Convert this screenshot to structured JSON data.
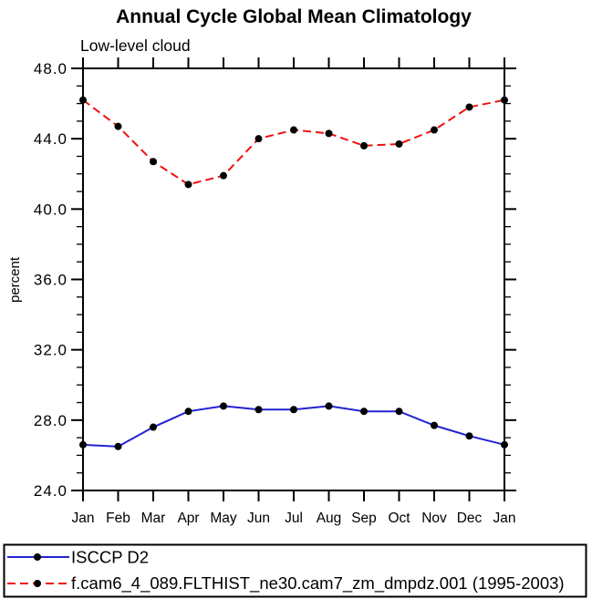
{
  "chart_data": {
    "type": "line",
    "title": "Annual Cycle Global Mean Climatology",
    "subtitle": "Low-level cloud",
    "xlabel": "",
    "ylabel": "percent",
    "categories": [
      "Jan",
      "Feb",
      "Mar",
      "Apr",
      "May",
      "Jun",
      "Jul",
      "Aug",
      "Sep",
      "Oct",
      "Nov",
      "Dec",
      "Jan"
    ],
    "ylim": [
      24.0,
      48.0
    ],
    "ytick_major_step": 4.0,
    "ytick_minor_step": 1.0,
    "ytick_labels": [
      "24.0",
      "28.0",
      "32.0",
      "36.0",
      "40.0",
      "44.0",
      "48.0"
    ],
    "grid": false,
    "legend_position": "bottom-left-box",
    "axis_color": "#000000",
    "marker_color": "#000000",
    "series": [
      {
        "name": "ISCCP D2",
        "color": "#2222d2",
        "line_style": "solid",
        "marker": "filled-circle",
        "values": [
          26.6,
          26.5,
          27.6,
          28.5,
          28.8,
          28.6,
          28.6,
          28.8,
          28.5,
          28.5,
          27.7,
          27.1,
          26.6
        ]
      },
      {
        "name": "f.cam6_4_089.FLTHIST_ne30.cam7_zm_dmpdz.001 (1995-2003)",
        "color": "#ee1111",
        "line_style": "dashed",
        "marker": "filled-circle",
        "values": [
          46.2,
          44.7,
          42.7,
          41.4,
          41.9,
          44.0,
          44.5,
          44.3,
          43.6,
          43.7,
          44.5,
          45.8,
          46.2
        ]
      }
    ]
  }
}
